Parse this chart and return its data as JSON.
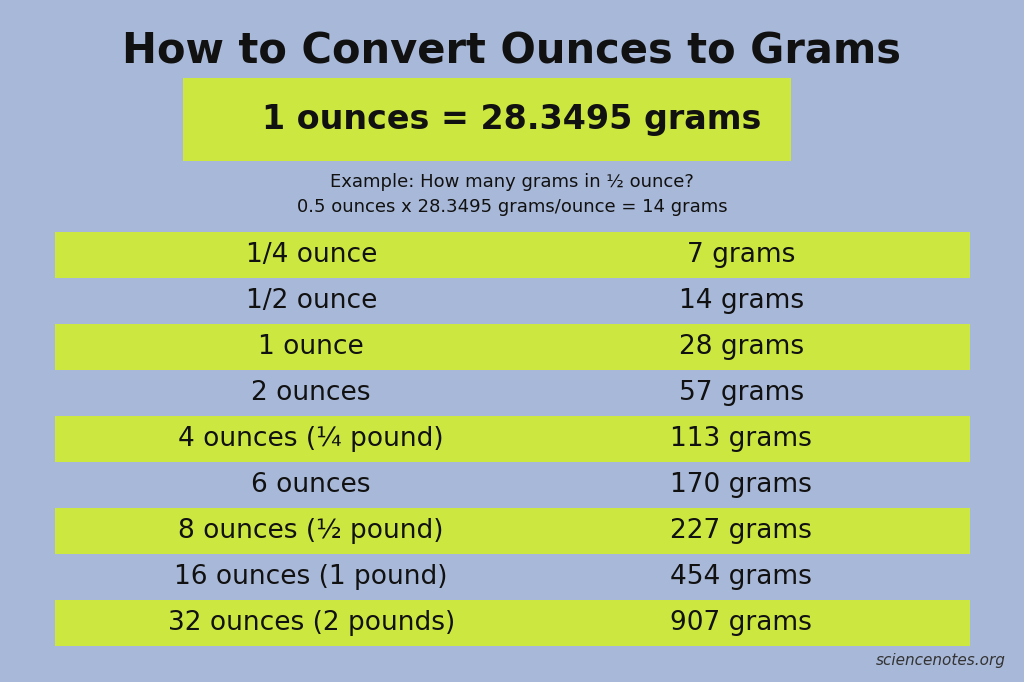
{
  "title": "How to Convert Ounces to Grams",
  "conversion_text": "1 ounces = 28.3495 grams",
  "example_line1": "Example: How many grams in ½ ounce?",
  "example_line2": "0.5 ounces x 28.3495 grams/ounce = 14 grams",
  "table_rows": [
    {
      "ounce": "1/4 ounce",
      "gram": "7 grams",
      "highlight": true
    },
    {
      "ounce": "1/2 ounce",
      "gram": "14 grams",
      "highlight": false
    },
    {
      "ounce": "1 ounce",
      "gram": "28 grams",
      "highlight": true
    },
    {
      "ounce": "2 ounces",
      "gram": "57 grams",
      "highlight": false
    },
    {
      "ounce": "4 ounces (¼ pound)",
      "gram": "113 grams",
      "highlight": true
    },
    {
      "ounce": "6 ounces",
      "gram": "170 grams",
      "highlight": false
    },
    {
      "ounce": "8 ounces (½ pound)",
      "gram": "227 grams",
      "highlight": true
    },
    {
      "ounce": "16 ounces (1 pound)",
      "gram": "454 grams",
      "highlight": false
    },
    {
      "ounce": "32 ounces (2 pounds)",
      "gram": "907 grams",
      "highlight": true
    }
  ],
  "bg_color": "#a8b8d8",
  "highlight_color": "#cce840",
  "conversion_box_color": "#cce840",
  "text_color": "#111111",
  "watermark": "sciencenotes.org",
  "title_fontsize": 30,
  "conversion_fontsize": 24,
  "example_fontsize": 13,
  "table_fontsize": 19,
  "watermark_fontsize": 11,
  "fig_w": 1024,
  "fig_h": 682
}
